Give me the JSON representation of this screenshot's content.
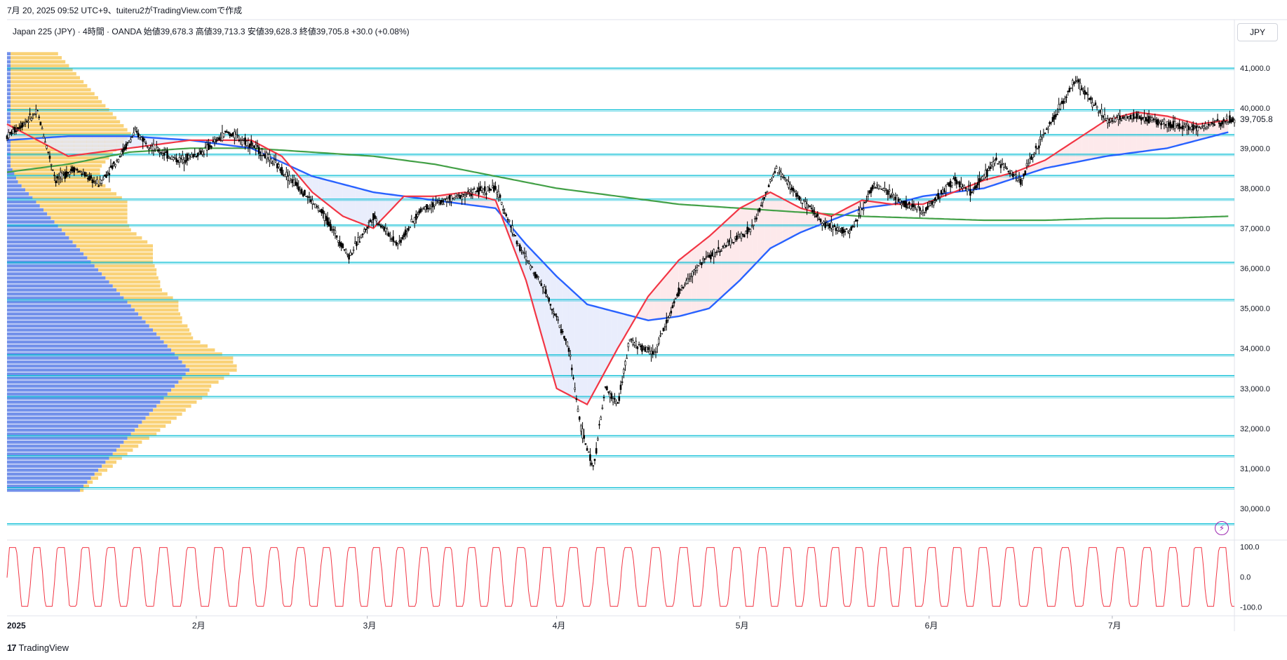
{
  "caption": "7月 20, 2025 09:52 UTC+9、tuiteru2がTradingView.comで作成",
  "symbol_info": "Japan 225 (JPY) · 4時間 · OANDA  始値39,678.3  高値39,713.3  安値39,628.3  終値39,705.8  +30.0 (+0.08%)",
  "currency_button": "JPY",
  "last_price_label": "39,705.8",
  "footer_brand": "TradingView",
  "footer_mark": "17",
  "colors": {
    "horizontal_lines": "#00bcd4",
    "candles": "#000000",
    "ma_fast": "#f23645",
    "ma_mid": "#2962ff",
    "ma_slow": "#43a047",
    "vp_up": "#f7c34b",
    "vp_down": "#5b7ee6",
    "oscillator": "#f23645",
    "fill_red": "#fce4e6",
    "fill_blue": "#e3e8fb"
  },
  "icons": {
    "flash": "lightning-icon"
  },
  "chart_data": [
    {
      "type": "line",
      "subtype": "candlestick",
      "xlabel": "",
      "ylabel": "",
      "x_tick_labels": [
        "2025",
        "2月",
        "3月",
        "4月",
        "5月",
        "6月",
        "7月"
      ],
      "x_tick_days": [
        0,
        31,
        59,
        90,
        120,
        151,
        181
      ],
      "ylim": [
        29300,
        41300
      ],
      "y_ticks": [
        30000,
        31000,
        32000,
        33000,
        34000,
        35000,
        36000,
        37000,
        38000,
        39000,
        40000,
        41000
      ],
      "y_tick_labels": [
        "30,000.0",
        "31,000.0",
        "32,000.0",
        "33,000.0",
        "34,000.0",
        "35,000.0",
        "36,000.0",
        "37,000.0",
        "38,000.0",
        "39,000.0",
        "40,000.0",
        "41,000.0"
      ],
      "x_day_range": [
        0,
        201
      ],
      "horizontal_levels": [
        41000,
        39960,
        39340,
        38850,
        38320,
        37730,
        37080,
        36150,
        35220,
        33840,
        33320,
        32800,
        31820,
        31320,
        30520,
        29620
      ],
      "price_path": {
        "day": [
          0,
          5,
          8,
          11,
          15,
          18,
          21,
          24,
          28,
          32,
          36,
          40,
          44,
          48,
          52,
          56,
          60,
          64,
          68,
          72,
          76,
          80,
          84,
          88,
          92,
          94,
          96,
          98,
          100,
          102,
          104,
          106,
          110,
          114,
          118,
          122,
          126,
          130,
          134,
          138,
          142,
          146,
          150,
          155,
          158,
          162,
          166,
          170,
          175,
          180,
          185,
          190,
          195,
          200
        ],
        "price": [
          39300,
          39900,
          38200,
          38500,
          38100,
          38700,
          39400,
          39000,
          38700,
          38900,
          39400,
          39100,
          38600,
          38000,
          37300,
          36300,
          37300,
          36600,
          37500,
          37700,
          37900,
          38000,
          36500,
          35500,
          34000,
          32000,
          31000,
          33000,
          32600,
          34200,
          34000,
          33900,
          35400,
          36200,
          36600,
          37000,
          38500,
          37700,
          37100,
          36900,
          38100,
          37700,
          37400,
          38200,
          37900,
          38700,
          38200,
          39400,
          40700,
          39700,
          39800,
          39600,
          39500,
          39700
        ]
      },
      "ma_fast": {
        "day": [
          0,
          10,
          20,
          30,
          40,
          45,
          50,
          55,
          60,
          65,
          70,
          75,
          80,
          85,
          90,
          95,
          100,
          105,
          110,
          115,
          120,
          125,
          130,
          135,
          140,
          145,
          150,
          155,
          160,
          165,
          170,
          175,
          180,
          185,
          190,
          195,
          200
        ],
        "value": [
          39600,
          38800,
          39000,
          39200,
          39200,
          38800,
          37900,
          37300,
          37000,
          37800,
          37800,
          37900,
          37700,
          35700,
          33000,
          32600,
          34000,
          35300,
          36200,
          36800,
          37500,
          37900,
          37500,
          37300,
          37700,
          37600,
          37600,
          37900,
          38200,
          38400,
          38700,
          39200,
          39700,
          39900,
          39800,
          39600,
          39700
        ]
      },
      "ma_mid": {
        "day": [
          0,
          10,
          20,
          30,
          40,
          50,
          60,
          70,
          80,
          85,
          90,
          95,
          100,
          105,
          110,
          115,
          120,
          125,
          130,
          135,
          140,
          145,
          150,
          160,
          170,
          180,
          190,
          200
        ],
        "value": [
          39200,
          39300,
          39300,
          39200,
          39000,
          38300,
          37900,
          37700,
          37500,
          36600,
          35800,
          35100,
          34900,
          34700,
          34800,
          35000,
          35700,
          36500,
          36900,
          37200,
          37500,
          37600,
          37800,
          38000,
          38500,
          38800,
          39000,
          39400
        ]
      },
      "ma_slow": {
        "day": [
          0,
          10,
          20,
          30,
          40,
          50,
          60,
          70,
          80,
          90,
          100,
          110,
          120,
          130,
          140,
          150,
          160,
          170,
          180,
          190,
          200
        ],
        "value": [
          38400,
          38600,
          38900,
          39000,
          39000,
          38900,
          38800,
          38600,
          38300,
          38000,
          37800,
          37600,
          37500,
          37400,
          37300,
          37250,
          37200,
          37200,
          37250,
          37250,
          37300
        ]
      },
      "volume_profile": {
        "price_levels_step": 100,
        "price_start": 30400,
        "up_volume": [
          2,
          3,
          3,
          4,
          4,
          5,
          6,
          6,
          7,
          8,
          9,
          10,
          10,
          12,
          14,
          14,
          15,
          16,
          17,
          18,
          18,
          19,
          20,
          21,
          22,
          21,
          20,
          22,
          23,
          24,
          26,
          28,
          28,
          30,
          26,
          24,
          22,
          20,
          18,
          19,
          20,
          21,
          20,
          22,
          23,
          24,
          26,
          28,
          27,
          26,
          25,
          26,
          28,
          29,
          30,
          32,
          33,
          34,
          36,
          38,
          40,
          42,
          41,
          40,
          39,
          38,
          39,
          40,
          42,
          44,
          46,
          48,
          50,
          49,
          48,
          47,
          46,
          45,
          46,
          47,
          48,
          50,
          52,
          54,
          56,
          58,
          60,
          62,
          64,
          66,
          64,
          62,
          60,
          58,
          56,
          54,
          52,
          50,
          48,
          46,
          44,
          42,
          40,
          38,
          36,
          34,
          32,
          30,
          28,
          26,
          24,
          22,
          20,
          18
        ],
        "down_volume": [
          40,
          42,
          44,
          46,
          48,
          50,
          52,
          54,
          56,
          58,
          60,
          62,
          64,
          66,
          68,
          70,
          72,
          74,
          76,
          78,
          80,
          82,
          84,
          86,
          88,
          90,
          92,
          94,
          96,
          98,
          100,
          98,
          96,
          94,
          92,
          90,
          88,
          86,
          84,
          82,
          80,
          78,
          76,
          74,
          72,
          70,
          68,
          66,
          64,
          62,
          60,
          58,
          56,
          54,
          52,
          50,
          48,
          46,
          44,
          42,
          40,
          38,
          36,
          34,
          32,
          30,
          28,
          26,
          24,
          22,
          20,
          18,
          16,
          14,
          12,
          10,
          8,
          6,
          5,
          4,
          3,
          2,
          2,
          2,
          2,
          2,
          2,
          2,
          2,
          2,
          2,
          2,
          2,
          2,
          2,
          2,
          2,
          2,
          2,
          2,
          2,
          2,
          2,
          2,
          2,
          2,
          2,
          2,
          2,
          2,
          2,
          2,
          2,
          2
        ]
      }
    },
    {
      "type": "line",
      "subtype": "oscillator",
      "xlabel": "",
      "ylabel": "",
      "ylim": [
        -110,
        110
      ],
      "y_ticks": [
        100,
        0,
        -100
      ],
      "y_tick_labels": [
        "100.0",
        "0.0",
        "-100.0"
      ],
      "cycle_days": 4.2,
      "amplitude": 100
    }
  ]
}
